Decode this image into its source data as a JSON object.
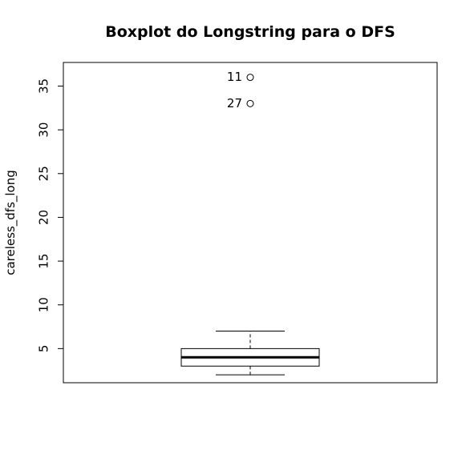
{
  "chart_data": {
    "type": "boxplot",
    "title": "Boxplot do Longstring para o DFS",
    "xlabel": "",
    "ylabel": "careless_dfs_long",
    "ylim": [
      1.1,
      37.7
    ],
    "yticks": [
      5,
      10,
      15,
      20,
      25,
      30,
      35
    ],
    "grid": false,
    "box": {
      "whisker_low": 2,
      "q1": 3,
      "median": 4,
      "q3": 5,
      "whisker_high": 7
    },
    "outliers": [
      {
        "label": "11",
        "value": 36
      },
      {
        "label": "27",
        "value": 33
      }
    ]
  }
}
